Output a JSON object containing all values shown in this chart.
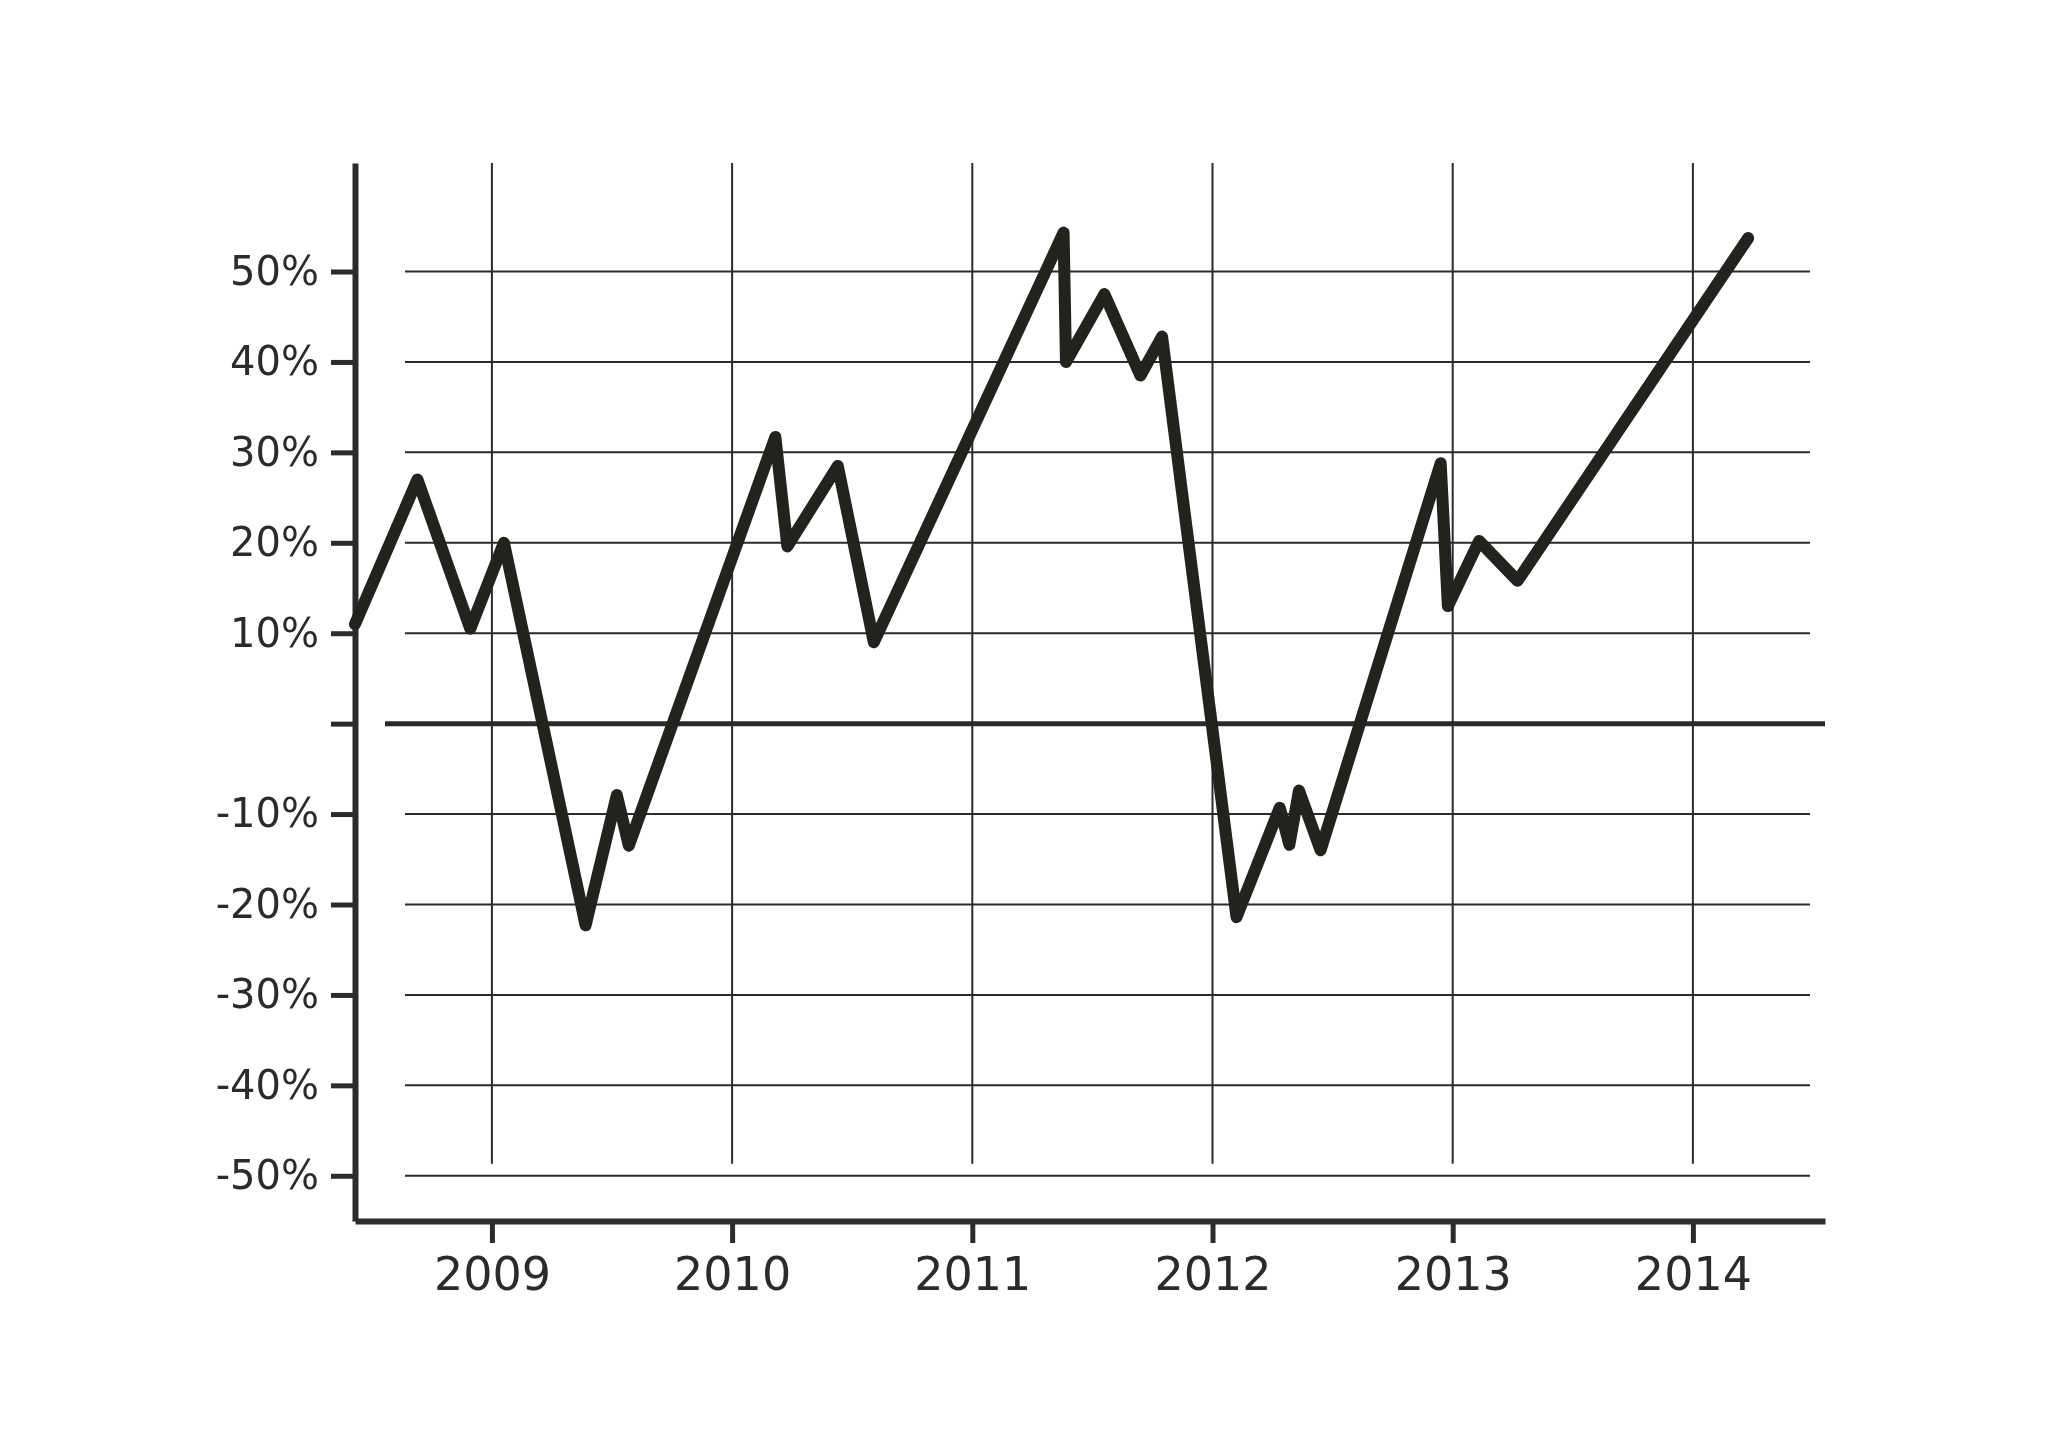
{
  "chart_data": {
    "type": "line",
    "x": [
      2008.43,
      2008.69,
      2008.91,
      2009.05,
      2009.39,
      2009.52,
      2009.57,
      2010.18,
      2010.23,
      2010.44,
      2010.59,
      2011.38,
      2011.39,
      2011.55,
      2011.7,
      2011.79,
      2012.1,
      2012.28,
      2012.32,
      2012.36,
      2012.45,
      2012.95,
      2012.98,
      2013.11,
      2013.27,
      2014.23
    ],
    "values": [
      11,
      27,
      10.5,
      20,
      -22.3,
      -7.9,
      -13.5,
      31.7,
      19.6,
      28.5,
      9,
      54.3,
      40,
      47.5,
      38.5,
      42.8,
      -21.4,
      -9.3,
      -13.4,
      -7.4,
      -14,
      28.8,
      13,
      20.2,
      15.8,
      53.7
    ],
    "color": "#22221f",
    "xlim": [
      2008.43,
      2014.55
    ],
    "xticks": [
      2009,
      2010,
      2011,
      2012,
      2013,
      2014
    ],
    "ylim": [
      -55,
      62
    ],
    "yticks": [
      {
        "value": 50,
        "label": "50%"
      },
      {
        "value": 40,
        "label": "40%"
      },
      {
        "value": 30,
        "label": "30%"
      },
      {
        "value": 20,
        "label": "20%"
      },
      {
        "value": 10,
        "label": "10%"
      },
      {
        "value": 0,
        "label": null
      },
      {
        "value": -10,
        "label": "-10%"
      },
      {
        "value": -20,
        "label": "-20%"
      },
      {
        "value": -30,
        "label": "-30%"
      },
      {
        "value": -40,
        "label": "-40%"
      },
      {
        "value": -50,
        "label": "-50%"
      }
    ],
    "grid": true,
    "ref_lines": [
      {
        "axis": "y",
        "value": 0
      }
    ]
  }
}
